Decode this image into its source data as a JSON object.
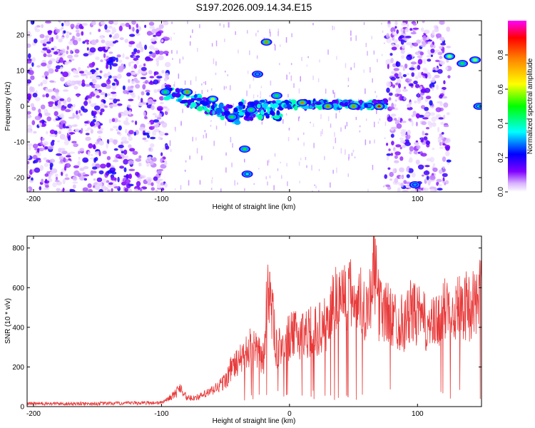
{
  "title": "S197.2026.009.14.34.E15",
  "chart_data": [
    {
      "type": "heatmap",
      "xlabel": "Height of straight line (km)",
      "ylabel": "Frequency (Hz)",
      "xlim": [
        -205,
        150
      ],
      "ylim": [
        -24,
        24
      ],
      "xticks": [
        -200,
        -100,
        0,
        100
      ],
      "yticks": [
        -20,
        -10,
        0,
        10,
        20
      ],
      "colorbar": {
        "label": "Normalized spectral amplitude",
        "range": [
          0,
          1
        ],
        "ticks": [
          0.0,
          0.2,
          0.4,
          0.6,
          0.8
        ],
        "tick_labels": [
          "0.0",
          "0.2",
          "0.4",
          "0.6",
          "0.8"
        ],
        "colors": [
          "#ffffff",
          "#d9b3ff",
          "#8000ff",
          "#0000ff",
          "#00ffff",
          "#00ff00",
          "#ffff00",
          "#ff8000",
          "#ff0000",
          "#ff00ff"
        ]
      },
      "noise_regions": [
        [
          -205,
          -95
        ],
        [
          75,
          125
        ]
      ],
      "features": [
        {
          "x": -18,
          "y": 18,
          "amp": 0.8
        },
        {
          "x": -25,
          "y": 9,
          "amp": 0.3
        },
        {
          "x": -97,
          "y": 4,
          "amp": 0.5
        },
        {
          "x": -80,
          "y": 4,
          "amp": 0.8
        },
        {
          "x": -60,
          "y": 2,
          "amp": 0.6
        },
        {
          "x": -45,
          "y": -3,
          "amp": 0.5
        },
        {
          "x": -35,
          "y": -12,
          "amp": 0.5
        },
        {
          "x": -33,
          "y": -19,
          "amp": 0.4
        },
        {
          "x": -30,
          "y": -1,
          "amp": 0.5
        },
        {
          "x": -10,
          "y": 3,
          "amp": 0.5
        },
        {
          "x": 10,
          "y": 1,
          "amp": 0.8
        },
        {
          "x": 30,
          "y": 0,
          "amp": 0.8
        },
        {
          "x": 50,
          "y": 0,
          "amp": 0.8
        },
        {
          "x": 70,
          "y": 0,
          "amp": 0.9
        },
        {
          "x": 125,
          "y": 14,
          "amp": 0.6
        },
        {
          "x": 135,
          "y": 12,
          "amp": 0.5
        },
        {
          "x": 145,
          "y": 13,
          "amp": 0.6
        },
        {
          "x": 148,
          "y": 0,
          "amp": 0.4
        },
        {
          "x": 98,
          "y": -22,
          "amp": 0.3
        }
      ]
    },
    {
      "type": "line",
      "xlabel": "Height of straight line (km)",
      "ylabel": "SNR (10 * v/v)",
      "xlim": [
        -205,
        150
      ],
      "ylim": [
        0,
        860
      ],
      "xticks": [
        -200,
        -100,
        0,
        100
      ],
      "yticks": [
        0,
        200,
        400,
        600,
        800
      ],
      "series": [
        {
          "name": "SNR",
          "color": "#e83a3a",
          "x": [
            -205,
            -150,
            -100,
            -90,
            -85,
            -80,
            -70,
            -60,
            -50,
            -45,
            -40,
            -30,
            -20,
            -17,
            -10,
            -5,
            0,
            10,
            20,
            30,
            35,
            40,
            50,
            55,
            60,
            63,
            65,
            70,
            75,
            80,
            90,
            95,
            100,
            105,
            110,
            115,
            120,
            125,
            130,
            135,
            140,
            145,
            150
          ],
          "y": [
            15,
            15,
            20,
            60,
            100,
            40,
            50,
            80,
            130,
            200,
            220,
            300,
            240,
            650,
            280,
            320,
            350,
            370,
            380,
            420,
            550,
            560,
            560,
            540,
            500,
            540,
            740,
            500,
            480,
            450,
            420,
            480,
            460,
            430,
            400,
            420,
            470,
            530,
            500,
            520,
            500,
            530,
            560
          ]
        }
      ]
    }
  ]
}
